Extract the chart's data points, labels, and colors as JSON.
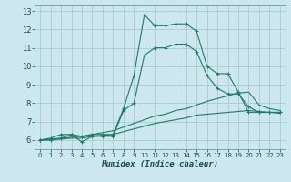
{
  "title": "",
  "xlabel": "Humidex (Indice chaleur)",
  "ylabel": "",
  "xlim": [
    -0.5,
    23.5
  ],
  "ylim": [
    5.5,
    13.3
  ],
  "yticks": [
    6,
    7,
    8,
    9,
    10,
    11,
    12,
    13
  ],
  "xticks": [
    0,
    1,
    2,
    3,
    4,
    5,
    6,
    7,
    8,
    9,
    10,
    11,
    12,
    13,
    14,
    15,
    16,
    17,
    18,
    19,
    20,
    21,
    22,
    23
  ],
  "bg_color": "#cce8ee",
  "grid_color": "#aacccc",
  "line_color": "#1e7b6a",
  "lines": [
    {
      "x": [
        0,
        1,
        2,
        3,
        4,
        5,
        6,
        7,
        8,
        9,
        10,
        11,
        12,
        13,
        14,
        15,
        16,
        17,
        18,
        19,
        20,
        21,
        22,
        23
      ],
      "y": [
        6.0,
        6.1,
        6.3,
        6.3,
        6.2,
        6.3,
        6.3,
        6.3,
        7.7,
        9.5,
        12.8,
        12.2,
        12.2,
        12.3,
        12.3,
        11.9,
        10.0,
        9.6,
        9.6,
        8.6,
        7.5,
        7.5,
        7.5,
        7.5
      ],
      "marker": true
    },
    {
      "x": [
        0,
        1,
        2,
        3,
        4,
        5,
        6,
        7,
        8,
        9,
        10,
        11,
        12,
        13,
        14,
        15,
        16,
        17,
        18,
        19,
        20,
        21,
        22,
        23
      ],
      "y": [
        6.0,
        6.0,
        6.1,
        6.3,
        5.9,
        6.2,
        6.2,
        6.2,
        7.6,
        8.0,
        10.6,
        11.0,
        11.0,
        11.2,
        11.2,
        10.8,
        9.5,
        8.8,
        8.5,
        8.5,
        7.8,
        7.5,
        7.5,
        7.5
      ],
      "marker": true
    },
    {
      "x": [
        0,
        1,
        2,
        3,
        4,
        5,
        6,
        7,
        8,
        9,
        10,
        11,
        12,
        13,
        14,
        15,
        16,
        17,
        18,
        19,
        20,
        21,
        22,
        23
      ],
      "y": [
        6.0,
        6.05,
        6.1,
        6.15,
        6.2,
        6.3,
        6.4,
        6.5,
        6.7,
        6.9,
        7.1,
        7.3,
        7.4,
        7.6,
        7.7,
        7.9,
        8.1,
        8.25,
        8.4,
        8.55,
        8.6,
        7.9,
        7.7,
        7.6
      ],
      "marker": false
    },
    {
      "x": [
        0,
        1,
        2,
        3,
        4,
        5,
        6,
        7,
        8,
        9,
        10,
        11,
        12,
        13,
        14,
        15,
        16,
        17,
        18,
        19,
        20,
        21,
        22,
        23
      ],
      "y": [
        6.0,
        6.0,
        6.05,
        6.1,
        6.1,
        6.2,
        6.25,
        6.3,
        6.45,
        6.6,
        6.75,
        6.9,
        7.0,
        7.1,
        7.2,
        7.35,
        7.4,
        7.45,
        7.5,
        7.55,
        7.6,
        7.55,
        7.5,
        7.45
      ],
      "marker": false
    }
  ]
}
